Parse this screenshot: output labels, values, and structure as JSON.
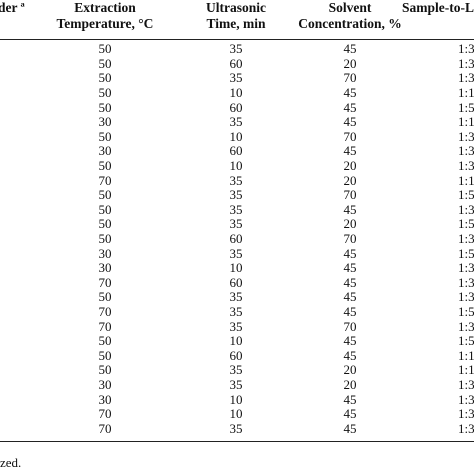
{
  "table": {
    "headers": [
      {
        "line1": "der ª",
        "line2": ""
      },
      {
        "line1": "Extraction",
        "line2": "Temperature, °C"
      },
      {
        "line1": "Ultrasonic",
        "line2": "Time, min"
      },
      {
        "line1": "Solvent",
        "line2": "Concentration, %"
      },
      {
        "line1": "Sample-to-Li",
        "line2": ""
      }
    ],
    "rows": [
      [
        "50",
        "35",
        "45",
        "1:3"
      ],
      [
        "50",
        "60",
        "20",
        "1:3"
      ],
      [
        "50",
        "35",
        "70",
        "1:3"
      ],
      [
        "50",
        "10",
        "45",
        "1:1"
      ],
      [
        "50",
        "60",
        "45",
        "1:5"
      ],
      [
        "30",
        "35",
        "45",
        "1:1"
      ],
      [
        "50",
        "10",
        "70",
        "1:3"
      ],
      [
        "30",
        "60",
        "45",
        "1:3"
      ],
      [
        "50",
        "10",
        "20",
        "1:3"
      ],
      [
        "70",
        "35",
        "20",
        "1:1"
      ],
      [
        "50",
        "35",
        "70",
        "1:5"
      ],
      [
        "50",
        "35",
        "45",
        "1:3"
      ],
      [
        "50",
        "35",
        "20",
        "1:5"
      ],
      [
        "50",
        "60",
        "70",
        "1:3"
      ],
      [
        "30",
        "35",
        "45",
        "1:5"
      ],
      [
        "30",
        "10",
        "45",
        "1:3"
      ],
      [
        "70",
        "60",
        "45",
        "1:3"
      ],
      [
        "50",
        "35",
        "45",
        "1:3"
      ],
      [
        "70",
        "35",
        "45",
        "1:5"
      ],
      [
        "70",
        "35",
        "70",
        "1:3"
      ],
      [
        "50",
        "10",
        "45",
        "1:5"
      ],
      [
        "50",
        "60",
        "45",
        "1:1"
      ],
      [
        "50",
        "35",
        "20",
        "1:1"
      ],
      [
        "30",
        "35",
        "20",
        "1:3"
      ],
      [
        "30",
        "10",
        "45",
        "1:3"
      ],
      [
        "70",
        "10",
        "45",
        "1:3"
      ],
      [
        "70",
        "35",
        "45",
        "1:3"
      ]
    ]
  },
  "footnote": "zed."
}
